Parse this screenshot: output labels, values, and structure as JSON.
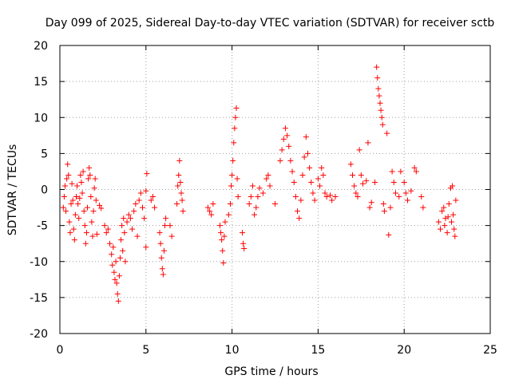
{
  "chart_data": {
    "type": "scatter",
    "title": "Day 099 of 2025, Sidereal Day-to-day VTEC variation (SDTVAR) for receiver sctb",
    "xlabel": "GPS time / hours",
    "ylabel": "SDTVAR / TECUs",
    "xlim": [
      0,
      25
    ],
    "ylim": [
      -20,
      20
    ],
    "xticks": [
      0,
      5,
      10,
      15,
      20,
      25
    ],
    "yticks": [
      -20,
      -15,
      -10,
      -5,
      0,
      5,
      10,
      15,
      20
    ],
    "x_tick_labels": [
      "0",
      "5",
      "10",
      "15",
      "20",
      "25"
    ],
    "y_tick_labels": [
      "-20",
      "-15",
      "-10",
      "-5",
      "0",
      "5",
      "10",
      "15",
      "20"
    ],
    "grid": true,
    "marker": "+",
    "color": "#ff0000",
    "series": [
      {
        "name": "SDTVAR",
        "points": [
          [
            0.2,
            -2.5
          ],
          [
            0.25,
            -1.0
          ],
          [
            0.3,
            0.5
          ],
          [
            0.35,
            -3.0
          ],
          [
            0.4,
            1.5
          ],
          [
            0.45,
            3.5
          ],
          [
            0.5,
            2.0
          ],
          [
            0.55,
            -4.5
          ],
          [
            0.6,
            -6.0
          ],
          [
            0.65,
            -2.0
          ],
          [
            0.7,
            0.8
          ],
          [
            0.75,
            -1.5
          ],
          [
            0.8,
            -5.5
          ],
          [
            0.85,
            -7.0
          ],
          [
            0.9,
            -3.5
          ],
          [
            0.95,
            -1.0
          ],
          [
            1.0,
            0.5
          ],
          [
            1.05,
            -2.0
          ],
          [
            1.1,
            -4.0
          ],
          [
            1.15,
            -1.2
          ],
          [
            1.2,
            2.0
          ],
          [
            1.25,
            1.0
          ],
          [
            1.3,
            -0.5
          ],
          [
            1.35,
            2.5
          ],
          [
            1.4,
            -3.0
          ],
          [
            1.45,
            -5.0
          ],
          [
            1.5,
            -7.5
          ],
          [
            1.55,
            -6.0
          ],
          [
            1.6,
            -2.5
          ],
          [
            1.65,
            1.5
          ],
          [
            1.7,
            3.0
          ],
          [
            1.75,
            2.0
          ],
          [
            1.8,
            -1.0
          ],
          [
            1.85,
            -4.5
          ],
          [
            1.9,
            -6.5
          ],
          [
            1.95,
            -3.0
          ],
          [
            2.0,
            0.2
          ],
          [
            2.05,
            1.5
          ],
          [
            2.1,
            -1.5
          ],
          [
            2.15,
            -6.2
          ],
          [
            2.3,
            -2.2
          ],
          [
            2.4,
            -2.6
          ],
          [
            2.6,
            -5.0
          ],
          [
            2.7,
            -6.0
          ],
          [
            2.8,
            -5.5
          ],
          [
            2.9,
            -7.5
          ],
          [
            3.0,
            -9.0
          ],
          [
            3.05,
            -10.5
          ],
          [
            3.1,
            -8.0
          ],
          [
            3.15,
            -11.5
          ],
          [
            3.2,
            -12.5
          ],
          [
            3.25,
            -10.0
          ],
          [
            3.3,
            -13.0
          ],
          [
            3.35,
            -14.5
          ],
          [
            3.4,
            -15.5
          ],
          [
            3.45,
            -12.0
          ],
          [
            3.5,
            -9.5
          ],
          [
            3.55,
            -7.0
          ],
          [
            3.6,
            -5.0
          ],
          [
            3.65,
            -8.5
          ],
          [
            3.7,
            -4.0
          ],
          [
            3.75,
            -6.0
          ],
          [
            3.8,
            -10.0
          ],
          [
            3.9,
            -4.5
          ],
          [
            4.0,
            -3.5
          ],
          [
            4.1,
            -4.0
          ],
          [
            4.2,
            -5.5
          ],
          [
            4.3,
            -3.0
          ],
          [
            4.4,
            -2.0
          ],
          [
            4.5,
            -6.5
          ],
          [
            4.6,
            -1.5
          ],
          [
            4.7,
            -0.5
          ],
          [
            4.8,
            -2.5
          ],
          [
            4.9,
            -4.0
          ],
          [
            5.0,
            -0.2
          ],
          [
            5.05,
            2.2
          ],
          [
            5.0,
            -8.0
          ],
          [
            5.3,
            -1.5
          ],
          [
            5.4,
            -1.0
          ],
          [
            5.5,
            -2.5
          ],
          [
            5.8,
            -6.0
          ],
          [
            5.85,
            -7.5
          ],
          [
            5.9,
            -9.5
          ],
          [
            5.95,
            -11.0
          ],
          [
            6.0,
            -11.8
          ],
          [
            6.05,
            -8.5
          ],
          [
            6.1,
            -5.0
          ],
          [
            6.15,
            -4.0
          ],
          [
            6.4,
            -5.0
          ],
          [
            6.5,
            -6.5
          ],
          [
            6.8,
            -2.0
          ],
          [
            6.85,
            0.5
          ],
          [
            6.9,
            2.0
          ],
          [
            6.95,
            4.0
          ],
          [
            7.0,
            1.0
          ],
          [
            7.05,
            -0.5
          ],
          [
            7.1,
            -1.5
          ],
          [
            7.15,
            -3.0
          ],
          [
            8.6,
            -2.5
          ],
          [
            8.7,
            -3.0
          ],
          [
            8.8,
            -3.5
          ],
          [
            8.9,
            -2.0
          ],
          [
            9.3,
            -5.0
          ],
          [
            9.35,
            -6.0
          ],
          [
            9.4,
            -7.0
          ],
          [
            9.45,
            -8.5
          ],
          [
            9.5,
            -10.2
          ],
          [
            9.55,
            -6.5
          ],
          [
            9.6,
            -4.5
          ],
          [
            9.8,
            -3.5
          ],
          [
            9.9,
            -2.0
          ],
          [
            9.95,
            0.5
          ],
          [
            10.0,
            2.0
          ],
          [
            10.05,
            4.0
          ],
          [
            10.1,
            6.5
          ],
          [
            10.15,
            8.5
          ],
          [
            10.2,
            10.0
          ],
          [
            10.25,
            11.3
          ],
          [
            10.3,
            1.5
          ],
          [
            10.35,
            -1.0
          ],
          [
            10.6,
            -6.0
          ],
          [
            10.65,
            -7.5
          ],
          [
            10.7,
            -8.2
          ],
          [
            11.0,
            -2.0
          ],
          [
            11.1,
            -1.0
          ],
          [
            11.2,
            0.5
          ],
          [
            11.3,
            -3.5
          ],
          [
            11.4,
            -2.5
          ],
          [
            11.5,
            -1.0
          ],
          [
            11.6,
            0.2
          ],
          [
            11.8,
            -0.5
          ],
          [
            12.0,
            1.5
          ],
          [
            12.1,
            2.0
          ],
          [
            12.2,
            0.5
          ],
          [
            12.5,
            -2.0
          ],
          [
            12.8,
            4.0
          ],
          [
            12.9,
            5.5
          ],
          [
            13.0,
            7.0
          ],
          [
            13.1,
            8.5
          ],
          [
            13.2,
            7.5
          ],
          [
            13.3,
            6.0
          ],
          [
            13.4,
            4.0
          ],
          [
            13.5,
            2.5
          ],
          [
            13.6,
            1.0
          ],
          [
            13.7,
            -1.0
          ],
          [
            13.8,
            -3.0
          ],
          [
            13.9,
            -4.0
          ],
          [
            14.0,
            -1.5
          ],
          [
            14.1,
            2.0
          ],
          [
            14.2,
            4.5
          ],
          [
            14.3,
            7.3
          ],
          [
            14.4,
            5.0
          ],
          [
            14.5,
            3.0
          ],
          [
            14.6,
            1.0
          ],
          [
            14.7,
            -0.5
          ],
          [
            14.8,
            -1.5
          ],
          [
            15.0,
            1.5
          ],
          [
            15.1,
            0.5
          ],
          [
            15.2,
            3.0
          ],
          [
            15.3,
            2.0
          ],
          [
            15.4,
            -0.5
          ],
          [
            15.5,
            -1.0
          ],
          [
            15.7,
            -0.8
          ],
          [
            15.8,
            -1.5
          ],
          [
            16.0,
            -1.0
          ],
          [
            16.9,
            3.5
          ],
          [
            17.0,
            2.0
          ],
          [
            17.1,
            0.5
          ],
          [
            17.2,
            -0.5
          ],
          [
            17.3,
            -1.0
          ],
          [
            17.4,
            5.5
          ],
          [
            17.5,
            2.0
          ],
          [
            17.6,
            0.8
          ],
          [
            17.8,
            1.2
          ],
          [
            17.9,
            6.5
          ],
          [
            18.0,
            -2.5
          ],
          [
            18.1,
            -1.8
          ],
          [
            18.3,
            1.0
          ],
          [
            18.4,
            17.0
          ],
          [
            18.45,
            15.5
          ],
          [
            18.5,
            14.0
          ],
          [
            18.55,
            13.0
          ],
          [
            18.6,
            12.0
          ],
          [
            18.65,
            11.0
          ],
          [
            18.7,
            10.0
          ],
          [
            18.75,
            9.0
          ],
          [
            18.8,
            -2.0
          ],
          [
            18.85,
            -3.0
          ],
          [
            19.0,
            7.8
          ],
          [
            19.1,
            -6.3
          ],
          [
            19.2,
            -2.5
          ],
          [
            19.3,
            2.5
          ],
          [
            19.4,
            1.0
          ],
          [
            19.5,
            -0.5
          ],
          [
            19.7,
            -1.0
          ],
          [
            19.8,
            2.5
          ],
          [
            20.0,
            1.0
          ],
          [
            20.1,
            -0.5
          ],
          [
            20.2,
            -1.5
          ],
          [
            20.4,
            -0.2
          ],
          [
            20.6,
            3.0
          ],
          [
            20.7,
            2.5
          ],
          [
            21.0,
            -1.0
          ],
          [
            21.1,
            -2.5
          ],
          [
            22.0,
            -4.5
          ],
          [
            22.1,
            -5.5
          ],
          [
            22.2,
            -3.0
          ],
          [
            22.3,
            -2.5
          ],
          [
            22.4,
            -4.0
          ],
          [
            22.5,
            -6.0
          ],
          [
            22.6,
            -2.0
          ],
          [
            22.7,
            0.2
          ],
          [
            22.8,
            0.5
          ],
          [
            22.85,
            -3.5
          ],
          [
            22.9,
            -5.5
          ],
          [
            22.95,
            -6.5
          ],
          [
            23.0,
            -1.5
          ],
          [
            22.75,
            -4.5
          ],
          [
            22.55,
            -3.8
          ],
          [
            22.35,
            -5.0
          ]
        ]
      }
    ]
  }
}
